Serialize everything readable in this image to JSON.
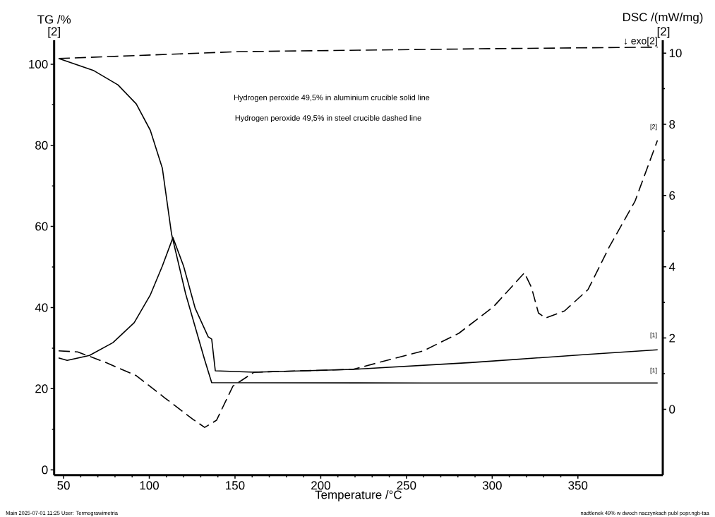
{
  "chart_data": {
    "type": "line",
    "xlabel": "Temperature /°C",
    "ylabel": "TG /%",
    "y2label": "DSC /(mW/mg)",
    "xlim": [
      44.5,
      399.5
    ],
    "xticks": [
      50,
      100,
      150,
      200,
      250,
      300,
      350
    ],
    "ylim": [
      -1.3,
      105.9
    ],
    "yticks": [
      0,
      20,
      40,
      60,
      80,
      100
    ],
    "y2lim": [
      -1.85,
      10.36
    ],
    "y2ticks": [
      0,
      2,
      4,
      6,
      8,
      10
    ],
    "series": [
      {
        "color": "#000000",
        "line_style": "solid",
        "x": [
          47.1,
          67.7,
          81.7,
          92.4,
          100.6,
          107.6,
          113.0,
          121.2,
          132.3,
          136.4,
          259.9,
          396.5
        ],
        "values": [
          101.4,
          98.4,
          94.9,
          90.2,
          83.7,
          74.4,
          58.1,
          43.4,
          27.1,
          21.5,
          21.4,
          21.4
        ]
      },
      {
        "color": "#000000",
        "line_style": "dashed",
        "x": [
          47.1,
          152.9,
          292.8,
          396.5
        ],
        "values": [
          101.4,
          103.1,
          103.8,
          104.2
        ]
      },
      {
        "color": "#000000",
        "line_style": "solid",
        "axis": "y2",
        "x": [
          47.1,
          52.1,
          65.1,
          78.8,
          91.2,
          100.7,
          107.6,
          113.8,
          120.0,
          126.8,
          134.4,
          136.4,
          138.5,
          161.1,
          218.7,
          287.3,
          355.8,
          396.5
        ],
        "values": [
          1.44,
          1.37,
          1.51,
          1.87,
          2.43,
          3.22,
          4.02,
          4.82,
          4.02,
          2.83,
          2.03,
          1.97,
          1.08,
          1.04,
          1.12,
          1.31,
          1.54,
          1.67
        ]
      },
      {
        "color": "#000000",
        "line_style": "dashed",
        "axis": "y2",
        "x": [
          47.1,
          58.2,
          74.7,
          92.5,
          109.0,
          125.4,
          132.3,
          139.2,
          148.8,
          161.1,
          218.7,
          259.9,
          280.5,
          301.0,
          318.8,
          322.9,
          327.0,
          331.1,
          342.2,
          355.9,
          368.2,
          383.3,
          396.4
        ],
        "values": [
          1.64,
          1.61,
          1.31,
          0.94,
          0.32,
          -0.28,
          -0.51,
          -0.31,
          0.65,
          1.04,
          1.12,
          1.64,
          2.13,
          2.89,
          3.83,
          3.42,
          2.7,
          2.56,
          2.76,
          3.36,
          4.55,
          5.84,
          7.55
        ]
      }
    ],
    "annotations": [
      "[2]",
      "[2]",
      "↓ exo[2]",
      "Hydrogen peroxide 49,5% in aluminium crucible solid line",
      "Hydrogen peroxide 49,5% in steel crucible dashed line",
      "[2]",
      "[1]",
      "[1]",
      "Main   2025-07-01 11:25   User: Termograwimetria",
      "nadtlenek 49% w dwoch naczynkach publ popr.ngb-taa"
    ]
  }
}
